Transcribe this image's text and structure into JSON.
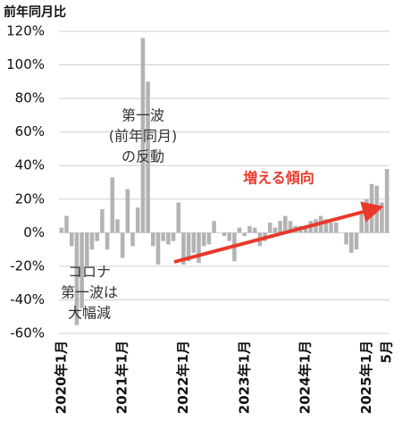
{
  "chart_data": {
    "type": "bar",
    "y_axis_label": "前年同月比",
    "categories": [
      "2020年1月",
      null,
      null,
      null,
      null,
      null,
      null,
      null,
      null,
      null,
      null,
      null,
      "2021年1月",
      null,
      null,
      null,
      null,
      null,
      null,
      null,
      null,
      null,
      null,
      null,
      "2022年1月",
      null,
      null,
      null,
      null,
      null,
      null,
      null,
      null,
      null,
      null,
      null,
      "2023年1月",
      null,
      null,
      null,
      null,
      null,
      null,
      null,
      null,
      null,
      null,
      null,
      "2024年1月",
      null,
      null,
      null,
      null,
      null,
      null,
      null,
      null,
      null,
      null,
      null,
      "2025年1月",
      null,
      null,
      null,
      "5月"
    ],
    "values": [
      3,
      10,
      -8,
      -55,
      -45,
      -20,
      -10,
      -5,
      14,
      -10,
      33,
      8,
      -15,
      26,
      -8,
      15,
      116,
      90,
      -8,
      -19,
      -5,
      -7,
      -5,
      18,
      -19,
      -17,
      -12,
      -18,
      -8,
      -7,
      7,
      0,
      -2,
      -5,
      -17,
      3,
      -2,
      4,
      3,
      -8,
      -5,
      6,
      3,
      7,
      10,
      7,
      4,
      4,
      4,
      7,
      8,
      10,
      8,
      6,
      6,
      0,
      -7,
      -12,
      -10,
      11,
      20,
      29,
      28,
      18,
      38
    ],
    "color": "#b3b3b3",
    "ylim": [
      -60,
      120
    ],
    "yticks": [
      {
        "value": -60,
        "label": "-60%"
      },
      {
        "value": -40,
        "label": "-40%"
      },
      {
        "value": -20,
        "label": "-20%"
      },
      {
        "value": 0,
        "label": "0%"
      },
      {
        "value": 20,
        "label": "20%"
      },
      {
        "value": 40,
        "label": "40%"
      },
      {
        "value": 60,
        "label": "60%"
      },
      {
        "value": 80,
        "label": "80%"
      },
      {
        "value": 100,
        "label": "100%"
      },
      {
        "value": 120,
        "label": "120%"
      }
    ],
    "grid": true,
    "annotations": [
      {
        "lines": [
          "第一波",
          "(前年同月)",
          "の反動"
        ]
      },
      {
        "lines": [
          "コロナ",
          "第一波は",
          "大幅減"
        ]
      },
      {
        "lines": [
          "増える傾向"
        ],
        "color": "#e8392b"
      }
    ]
  }
}
